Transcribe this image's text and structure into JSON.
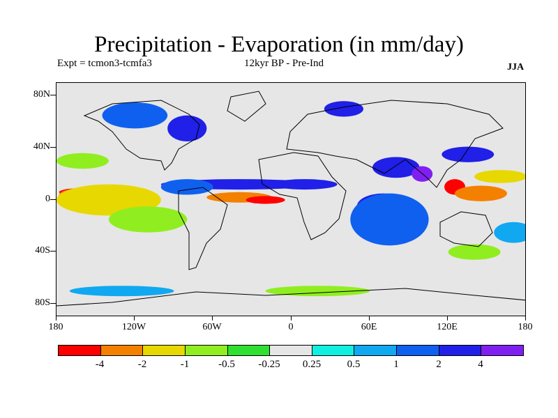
{
  "header": {
    "title": "Precipitation - Evaporation (in mm/day)",
    "expt_label": "Expt = tcmon3-tcmfa3",
    "period_label": "12kyr BP - Pre-Ind",
    "season_label": "JJA"
  },
  "map": {
    "projection": "equirectangular",
    "lon_range": [
      -180,
      180
    ],
    "lat_range": [
      -90,
      90
    ],
    "background_color": "#e6e6e6",
    "y_ticks": [
      "80N",
      "40N",
      "0",
      "40S",
      "80S"
    ],
    "x_ticks": [
      "180",
      "120W",
      "60W",
      "0",
      "60E",
      "120E",
      "180"
    ]
  },
  "colorbar": {
    "colors": [
      "#ff0000",
      "#f48000",
      "#e6d800",
      "#90ee20",
      "#30e030",
      "#e6e6e6",
      "#10f0e0",
      "#10a8f0",
      "#1060f0",
      "#2020e8",
      "#8020f0"
    ],
    "labels": [
      "-4",
      "-2",
      "-1",
      "-0.5",
      "-0.25",
      "0.25",
      "0.5",
      "1",
      "2",
      "4"
    ]
  },
  "anomaly_regions": [
    {
      "lon": -162,
      "lat": 6,
      "rx": 16,
      "ry": 3,
      "level": -4
    },
    {
      "lon": -150,
      "lat": 4,
      "rx": 28,
      "ry": 6,
      "level": -2
    },
    {
      "lon": -140,
      "lat": 0,
      "rx": 40,
      "ry": 12,
      "level": -1
    },
    {
      "lon": -110,
      "lat": -15,
      "rx": 30,
      "ry": 10,
      "level": -0.5
    },
    {
      "lon": -40,
      "lat": 2,
      "rx": 25,
      "ry": 4,
      "level": -2
    },
    {
      "lon": -20,
      "lat": 0,
      "rx": 15,
      "ry": 3,
      "level": -4
    },
    {
      "lon": -40,
      "lat": 12,
      "rx": 60,
      "ry": 4,
      "level": 2
    },
    {
      "lon": -80,
      "lat": 10,
      "rx": 20,
      "ry": 6,
      "level": 1
    },
    {
      "lon": 10,
      "lat": 12,
      "rx": 25,
      "ry": 4,
      "level": 2
    },
    {
      "lon": 70,
      "lat": -5,
      "rx": 20,
      "ry": 10,
      "level": 2
    },
    {
      "lon": 75,
      "lat": -15,
      "rx": 30,
      "ry": 20,
      "level": 1
    },
    {
      "lon": 80,
      "lat": 25,
      "rx": 18,
      "ry": 8,
      "level": 2
    },
    {
      "lon": 100,
      "lat": 20,
      "rx": 8,
      "ry": 6,
      "level": 4
    },
    {
      "lon": 125,
      "lat": 10,
      "rx": 8,
      "ry": 6,
      "level": -4
    },
    {
      "lon": 145,
      "lat": 5,
      "rx": 20,
      "ry": 6,
      "level": -2
    },
    {
      "lon": 160,
      "lat": 18,
      "rx": 20,
      "ry": 5,
      "level": -1
    },
    {
      "lon": 135,
      "lat": 35,
      "rx": 20,
      "ry": 6,
      "level": 2
    },
    {
      "lon": 40,
      "lat": 70,
      "rx": 15,
      "ry": 6,
      "level": 2
    },
    {
      "lon": -80,
      "lat": 55,
      "rx": 15,
      "ry": 10,
      "level": 2
    },
    {
      "lon": -120,
      "lat": 65,
      "rx": 25,
      "ry": 10,
      "level": 1
    },
    {
      "lon": 20,
      "lat": -70,
      "rx": 40,
      "ry": 4,
      "level": -0.5
    },
    {
      "lon": -130,
      "lat": -70,
      "rx": 40,
      "ry": 4,
      "level": 0.5
    },
    {
      "lon": 140,
      "lat": -40,
      "rx": 20,
      "ry": 6,
      "level": -0.5
    },
    {
      "lon": -160,
      "lat": 30,
      "rx": 20,
      "ry": 6,
      "level": -0.5
    },
    {
      "lon": 170,
      "lat": -25,
      "rx": 15,
      "ry": 8,
      "level": 0.5
    }
  ]
}
